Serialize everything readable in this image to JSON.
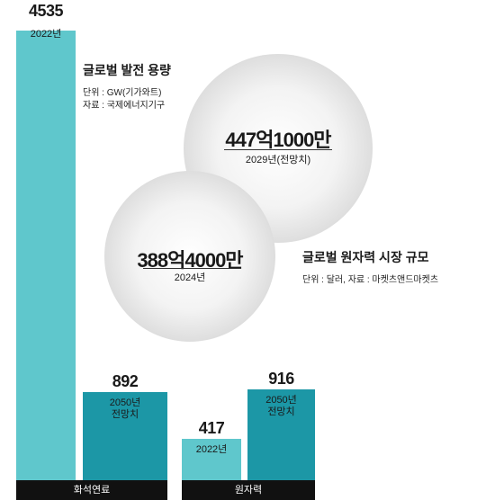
{
  "colors": {
    "light_teal": "#5fc7cc",
    "dark_teal": "#1c97a6",
    "axis_black": "#111111"
  },
  "chart_data": [
    {
      "type": "bar",
      "title": "글로벌 발전 용량",
      "unit_note": "단위 : GW(기가와트)",
      "source_note": "자료 : 국제에너지기구",
      "categories": [
        "화석연료",
        "원자력"
      ],
      "series": [
        {
          "label": "2022년",
          "values": [
            4535,
            417
          ]
        },
        {
          "label": "2050년 전망치",
          "values": [
            892,
            916
          ]
        }
      ]
    },
    {
      "type": "bubble",
      "title": "글로벌 원자력 시장 규모",
      "note": "단위 : 달러, 자료 : 마켓츠앤드마켓츠",
      "points": [
        {
          "label": "2029년(전망치)",
          "value_text": "447억1000만",
          "value": 44710000000
        },
        {
          "label": "2024년",
          "value_text": "388억4000만",
          "value": 38840000000
        }
      ]
    }
  ]
}
